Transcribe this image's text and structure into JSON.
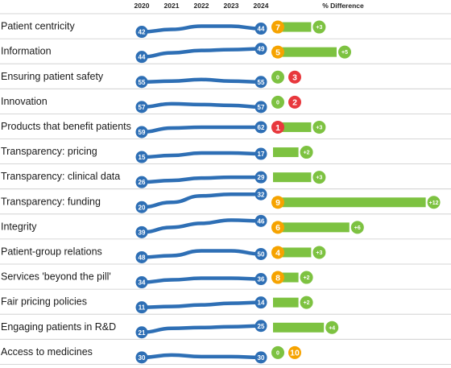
{
  "chart_data": {
    "type": "line",
    "x": [
      "2020",
      "2021",
      "2022",
      "2023",
      "2024"
    ],
    "diff_header": "% Difference",
    "colors": {
      "line": "#2e6fb5",
      "bar": "#7dc241",
      "rank_orange": "#f6a300",
      "rank_red": "#e8383d",
      "rank_green": "#7dc241"
    },
    "rows": [
      {
        "label": "Patient centricity",
        "values": [
          42,
          43.5,
          45.5,
          45.5,
          44
        ],
        "start_label": "42",
        "end_label": "44",
        "rank": "7",
        "rank_color": "orange",
        "diff": 3,
        "diff_label": "+3"
      },
      {
        "label": "Information",
        "values": [
          44,
          46.5,
          48,
          48.5,
          49
        ],
        "start_label": "44",
        "end_label": "49",
        "rank": "5",
        "rank_color": "orange",
        "diff": 5,
        "diff_label": "+5"
      },
      {
        "label": "Ensuring patient safety",
        "values": [
          55,
          55.5,
          56.5,
          55.5,
          55
        ],
        "start_label": "55",
        "end_label": "55",
        "rank": "3",
        "rank_color": "red",
        "diff": 0,
        "diff_label": "0"
      },
      {
        "label": "Innovation",
        "values": [
          57,
          59,
          58.5,
          58,
          57
        ],
        "start_label": "57",
        "end_label": "57",
        "rank": "2",
        "rank_color": "red",
        "diff": 0,
        "diff_label": "0"
      },
      {
        "label": "Products that benefit patients",
        "values": [
          59,
          61.5,
          62,
          62,
          62
        ],
        "start_label": "59",
        "end_label": "62",
        "rank": "1",
        "rank_color": "red",
        "diff": 3,
        "diff_label": "+3"
      },
      {
        "label": "Transparency: pricing",
        "values": [
          15,
          16,
          17.5,
          17.5,
          17
        ],
        "start_label": "15",
        "end_label": "17",
        "rank": "",
        "rank_color": "",
        "diff": 2,
        "diff_label": "+2"
      },
      {
        "label": "Transparency: clinical data",
        "values": [
          26,
          27,
          28.5,
          29,
          29
        ],
        "start_label": "26",
        "end_label": "29",
        "rank": "",
        "rank_color": "",
        "diff": 3,
        "diff_label": "+3"
      },
      {
        "label": "Transparency: funding",
        "values": [
          20,
          24.5,
          30.5,
          32,
          32
        ],
        "start_label": "20",
        "end_label": "32",
        "rank": "9",
        "rank_color": "orange",
        "diff": 12,
        "diff_label": "+12"
      },
      {
        "label": "Integrity",
        "values": [
          39,
          42,
          44.5,
          46.5,
          46
        ],
        "start_label": "39",
        "end_label": "46",
        "rank": "6",
        "rank_color": "orange",
        "diff": 6,
        "diff_label": "+6"
      },
      {
        "label": "Patient-group relations",
        "values": [
          48,
          49,
          52,
          52,
          50
        ],
        "start_label": "48",
        "end_label": "50",
        "rank": "4",
        "rank_color": "orange",
        "diff": 3,
        "diff_label": "+3"
      },
      {
        "label": "Services 'beyond the pill'",
        "values": [
          34,
          35.5,
          36.5,
          36.5,
          36
        ],
        "start_label": "34",
        "end_label": "36",
        "rank": "8",
        "rank_color": "orange",
        "diff": 2,
        "diff_label": "+2"
      },
      {
        "label": "Fair pricing policies",
        "values": [
          11,
          11.5,
          12.5,
          13.5,
          14
        ],
        "start_label": "11",
        "end_label": "14",
        "rank": "",
        "rank_color": "",
        "diff": 2,
        "diff_label": "+2"
      },
      {
        "label": "Engaging patients in R&D",
        "values": [
          21,
          23.5,
          24,
          24.5,
          25
        ],
        "start_label": "21",
        "end_label": "25",
        "rank": "",
        "rank_color": "",
        "diff": 4,
        "diff_label": "+4"
      },
      {
        "label": "Access to medicines",
        "values": [
          30,
          31.5,
          30.5,
          30.5,
          30
        ],
        "start_label": "30",
        "end_label": "30",
        "rank": "10",
        "rank_color": "orange",
        "diff": 0,
        "diff_label": "0"
      }
    ]
  }
}
